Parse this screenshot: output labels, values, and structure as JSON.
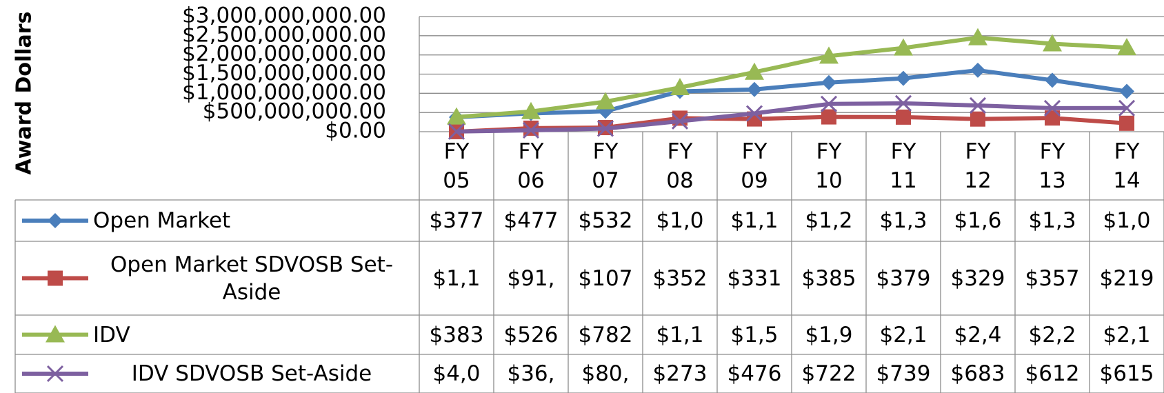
{
  "chart_data": {
    "type": "line",
    "y_label": "Award Dollars",
    "categories": [
      "FY 05",
      "FY 06",
      "FY 07",
      "FY 08",
      "FY 09",
      "FY 10",
      "FY 11",
      "FY 12",
      "FY 13",
      "FY 14"
    ],
    "series": [
      {
        "name": "Open Market",
        "color": "#4a7ebb",
        "marker": "diamond",
        "values": [
          377000000,
          477000000,
          532000000,
          1050000000,
          1100000000,
          1280000000,
          1390000000,
          1600000000,
          1340000000,
          1050000000
        ],
        "value_labels": [
          "$377",
          "$477",
          "$532",
          "$1,0",
          "$1,1",
          "$1,2",
          "$1,3",
          "$1,6",
          "$1,3",
          "$1,0"
        ]
      },
      {
        "name": "Open Market SDVOSB Set-Aside",
        "color": "#be4b48",
        "marker": "square",
        "values": [
          1100000,
          91000000,
          107000000,
          352000000,
          331000000,
          385000000,
          379000000,
          329000000,
          357000000,
          219000000
        ],
        "value_labels": [
          "$1,1",
          "$91,",
          "$107",
          "$352",
          "$331",
          "$385",
          "$379",
          "$329",
          "$357",
          "$219"
        ]
      },
      {
        "name": "IDV",
        "color": "#98b954",
        "marker": "triangle",
        "values": [
          383000000,
          526000000,
          782000000,
          1150000000,
          1550000000,
          1970000000,
          2180000000,
          2450000000,
          2290000000,
          2190000000
        ],
        "value_labels": [
          "$383",
          "$526",
          "$782",
          "$1,1",
          "$1,5",
          "$1,9",
          "$2,1",
          "$2,4",
          "$2,2",
          "$2,1"
        ]
      },
      {
        "name": "IDV SDVOSB Set-Aside",
        "color": "#7d60a0",
        "marker": "x",
        "values": [
          4000000,
          36000000,
          80000000,
          273000000,
          476000000,
          722000000,
          739000000,
          683000000,
          612000000,
          615000000
        ],
        "value_labels": [
          "$4,0",
          "$36,",
          "$80,",
          "$273",
          "$476",
          "$722",
          "$739",
          "$683",
          "$612",
          "$615"
        ]
      }
    ],
    "ylim": [
      0,
      3000000000
    ],
    "yticks": [
      {
        "value": 0,
        "label": "$0.00"
      },
      {
        "value": 500000000,
        "label": "$500,000,000.00"
      },
      {
        "value": 1000000000,
        "label": "$1,000,000,000.00"
      },
      {
        "value": 1500000000,
        "label": "$1,500,000,000.00"
      },
      {
        "value": 2000000000,
        "label": "$2,000,000,000.00"
      },
      {
        "value": 2500000000,
        "label": "$2,500,000,000.00"
      },
      {
        "value": 3000000000,
        "label": "$3,000,000,000.00"
      }
    ],
    "grid": true
  }
}
